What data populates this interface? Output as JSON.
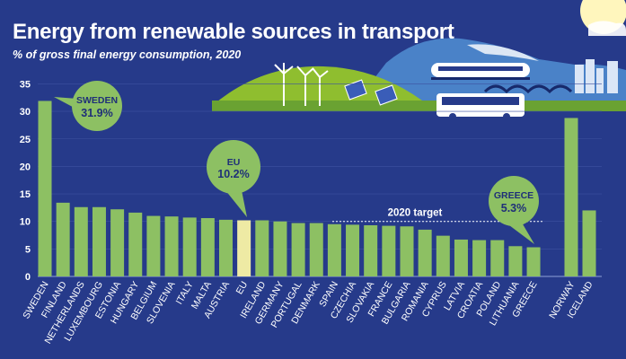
{
  "header": {
    "title": "Energy from renewable sources in transport",
    "subtitle": "% of gross final energy consumption, 2020"
  },
  "chart_data": {
    "type": "bar",
    "title": "Energy from renewable sources in transport",
    "subtitle": "% of gross final energy consumption, 2020",
    "xlabel": "",
    "ylabel": "",
    "ylim": [
      0,
      35
    ],
    "yticks": [
      0,
      5,
      10,
      15,
      20,
      25,
      30,
      35
    ],
    "target": {
      "label": "2020 target",
      "value": 10
    },
    "categories": [
      "SWEDEN",
      "FINLAND",
      "NETHERLANDS",
      "LUXEMBOURG",
      "ESTONIA",
      "HUNGARY",
      "BELGIUM",
      "SLOVENIA",
      "ITALY",
      "MALTA",
      "AUSTRIA",
      "EU",
      "IRELAND",
      "GERMANY",
      "PORTUGAL",
      "DENMARK",
      "SPAIN",
      "CZECHIA",
      "SLOVAKIA",
      "FRANCE",
      "BULGARIA",
      "ROMANIA",
      "CYPRUS",
      "LATVIA",
      "CROATIA",
      "POLAND",
      "LITHUANIA",
      "GREECE",
      "NORWAY",
      "ICELAND"
    ],
    "values": [
      31.9,
      13.4,
      12.6,
      12.6,
      12.2,
      11.6,
      11.0,
      10.9,
      10.7,
      10.6,
      10.3,
      10.2,
      10.2,
      10.0,
      9.7,
      9.7,
      9.5,
      9.4,
      9.3,
      9.2,
      9.1,
      8.5,
      7.4,
      6.7,
      6.6,
      6.6,
      5.5,
      5.3,
      28.8,
      12.0
    ],
    "groups": {
      "eu_member": 28,
      "non_eu": [
        "NORWAY",
        "ICELAND"
      ],
      "aggregate": "EU"
    },
    "callouts": [
      {
        "category": "SWEDEN",
        "label": "SWEDEN",
        "value_label": "31.9%"
      },
      {
        "category": "EU",
        "label": "EU",
        "value_label": "10.2%"
      },
      {
        "category": "GREECE",
        "label": "GREECE",
        "value_label": "5.3%"
      }
    ],
    "colors": {
      "background": "#263a8a",
      "bar": "#8dc063",
      "eu_bar": "#eeeaa4",
      "callout": "#8dc063",
      "non_eu_label": "#8fa3dc"
    }
  }
}
